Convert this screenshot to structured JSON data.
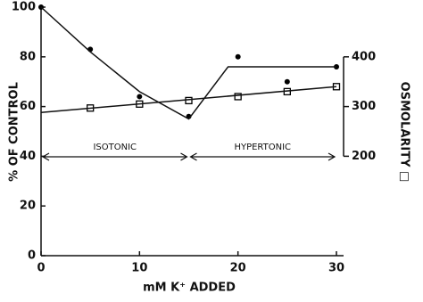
{
  "chart_data": {
    "type": "line",
    "x_label": "mM K⁺ ADDED",
    "y_label": "% OF CONTROL",
    "y2_label": "OSMOLARITY □",
    "xlim": [
      0,
      30
    ],
    "xticks": [
      0,
      10,
      20,
      30
    ],
    "ylim": [
      0,
      100
    ],
    "yticks": [
      0,
      20,
      40,
      60,
      80,
      100
    ],
    "y2lim": [
      0,
      500
    ],
    "y2ticks": [
      200,
      300,
      400
    ],
    "series": [
      {
        "mode": "markers",
        "marker": "circle",
        "color": "#000000",
        "x": [
          0,
          5,
          10,
          15,
          20,
          25,
          30
        ],
        "values": [
          100,
          83,
          64,
          56,
          80,
          70,
          76
        ]
      },
      {
        "mode": "line",
        "color": "#000000",
        "x": [
          0,
          5,
          10,
          15,
          19,
          30
        ],
        "values": [
          100,
          82,
          66,
          55,
          76,
          76
        ]
      },
      {
        "mode": "markers",
        "marker": "square",
        "axis": "y2",
        "color": "#000000",
        "x": [
          5,
          10,
          15,
          20,
          25,
          30
        ],
        "values": [
          297,
          305,
          312,
          320,
          330,
          340
        ]
      },
      {
        "mode": "line",
        "axis": "y2",
        "color": "#000000",
        "x": [
          0,
          30
        ],
        "values": [
          288,
          340
        ]
      }
    ],
    "annotations": [
      {
        "text": "ISOTONIC",
        "x": [
          0,
          15
        ]
      },
      {
        "text": "HYPERTONIC",
        "x": [
          15,
          30
        ]
      }
    ]
  }
}
